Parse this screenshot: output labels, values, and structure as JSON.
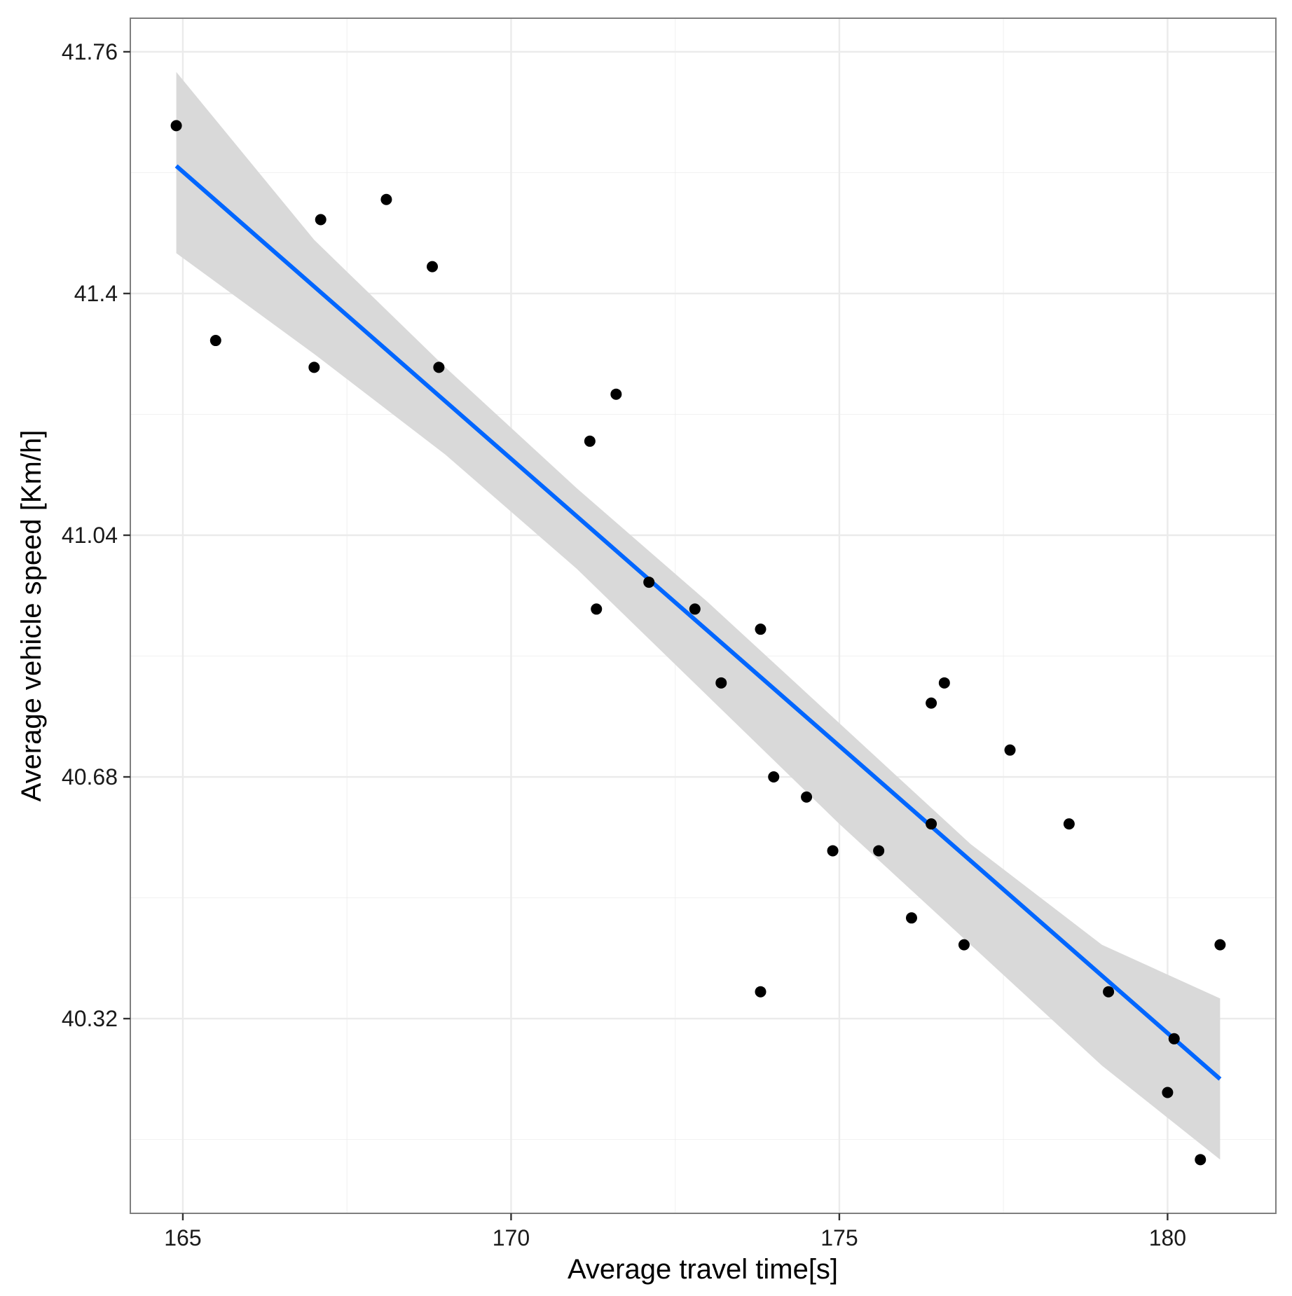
{
  "chart_data": {
    "type": "scatter",
    "title": "",
    "xlabel": "Average travel time[s]",
    "ylabel": "Average vehicle speed [Km/h]",
    "xlim": [
      164.2,
      181.65
    ],
    "ylim": [
      40.03,
      41.81
    ],
    "x_ticks": [
      165,
      170,
      175,
      180
    ],
    "x_tick_labels": [
      "165",
      "170",
      "175",
      "180"
    ],
    "y_ticks": [
      40.32,
      40.68,
      41.04,
      41.4,
      41.76
    ],
    "y_tick_labels": [
      "40.32",
      "40.68",
      "41.04",
      "41.4",
      "41.76"
    ],
    "grid": true,
    "legend": "none",
    "colors": {
      "points": "#000000",
      "fit_line": "#0066ff",
      "confidence_band": "#d9d9d9",
      "grid": "#ebebeb",
      "panel_border": "#7f7f7f"
    },
    "points": [
      {
        "x": 164.9,
        "y": 41.65
      },
      {
        "x": 165.5,
        "y": 41.33
      },
      {
        "x": 167.0,
        "y": 41.29
      },
      {
        "x": 167.1,
        "y": 41.51
      },
      {
        "x": 168.1,
        "y": 41.54
      },
      {
        "x": 168.8,
        "y": 41.44
      },
      {
        "x": 168.9,
        "y": 41.29
      },
      {
        "x": 171.2,
        "y": 41.18
      },
      {
        "x": 171.3,
        "y": 40.93
      },
      {
        "x": 171.6,
        "y": 41.25
      },
      {
        "x": 172.1,
        "y": 40.97
      },
      {
        "x": 172.8,
        "y": 40.93
      },
      {
        "x": 173.2,
        "y": 40.82
      },
      {
        "x": 173.8,
        "y": 40.9
      },
      {
        "x": 173.8,
        "y": 40.36
      },
      {
        "x": 174.0,
        "y": 40.68
      },
      {
        "x": 174.5,
        "y": 40.65
      },
      {
        "x": 174.9,
        "y": 40.57
      },
      {
        "x": 175.6,
        "y": 40.57
      },
      {
        "x": 176.1,
        "y": 40.47
      },
      {
        "x": 176.4,
        "y": 40.79
      },
      {
        "x": 176.4,
        "y": 40.61
      },
      {
        "x": 176.6,
        "y": 40.82
      },
      {
        "x": 176.9,
        "y": 40.43
      },
      {
        "x": 177.6,
        "y": 40.72
      },
      {
        "x": 178.5,
        "y": 40.61
      },
      {
        "x": 179.1,
        "y": 40.36
      },
      {
        "x": 180.0,
        "y": 40.21
      },
      {
        "x": 180.1,
        "y": 40.29
      },
      {
        "x": 180.5,
        "y": 40.11
      },
      {
        "x": 180.8,
        "y": 40.43
      }
    ],
    "fit_line": {
      "method": "lm",
      "x": [
        164.9,
        180.8
      ],
      "y": [
        41.59,
        40.23
      ]
    },
    "confidence_band": {
      "x": [
        164.9,
        167.0,
        169.0,
        171.0,
        173.0,
        175.0,
        177.0,
        179.0,
        180.8
      ],
      "upper": [
        41.73,
        41.48,
        41.29,
        41.11,
        40.94,
        40.76,
        40.58,
        40.43,
        40.35
      ],
      "lower": [
        41.46,
        41.31,
        41.16,
        40.99,
        40.8,
        40.61,
        40.43,
        40.25,
        40.11
      ]
    }
  }
}
